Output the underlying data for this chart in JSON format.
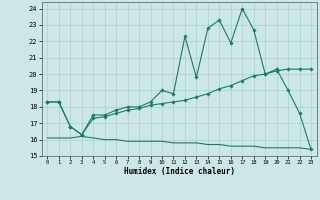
{
  "title": "",
  "xlabel": "Humidex (Indice chaleur)",
  "ylabel": "",
  "xlim": [
    -0.5,
    23.5
  ],
  "ylim": [
    15,
    24.4
  ],
  "yticks": [
    15,
    16,
    17,
    18,
    19,
    20,
    21,
    22,
    23,
    24
  ],
  "xticks": [
    0,
    1,
    2,
    3,
    4,
    5,
    6,
    7,
    8,
    9,
    10,
    11,
    12,
    13,
    14,
    15,
    16,
    17,
    18,
    19,
    20,
    21,
    22,
    23
  ],
  "bg_color": "#cce8e6",
  "grid_color": "#b0d4d2",
  "line_color": "#1a7a6e",
  "line1_x": [
    0,
    1,
    2,
    3,
    4,
    5,
    6,
    7,
    8,
    9,
    10,
    11,
    12,
    13,
    14,
    15,
    16,
    17,
    18,
    19,
    20,
    21,
    22,
    23
  ],
  "line1_y": [
    18.3,
    18.3,
    16.8,
    16.3,
    17.5,
    17.5,
    17.8,
    18.0,
    18.0,
    18.3,
    19.0,
    18.8,
    22.3,
    19.8,
    22.8,
    23.3,
    21.9,
    24.0,
    22.7,
    20.0,
    20.3,
    19.0,
    17.6,
    15.4
  ],
  "line2_x": [
    0,
    1,
    2,
    3,
    4,
    5,
    6,
    7,
    8,
    9,
    10,
    11,
    12,
    13,
    14,
    15,
    16,
    17,
    18,
    19,
    20,
    21,
    22,
    23
  ],
  "line2_y": [
    18.3,
    18.3,
    16.8,
    16.3,
    17.3,
    17.4,
    17.6,
    17.8,
    17.9,
    18.1,
    18.2,
    18.3,
    18.4,
    18.6,
    18.8,
    19.1,
    19.3,
    19.6,
    19.9,
    20.0,
    20.2,
    20.3,
    20.3,
    20.3
  ],
  "line3_x": [
    0,
    1,
    2,
    3,
    4,
    5,
    6,
    7,
    8,
    9,
    10,
    11,
    12,
    13,
    14,
    15,
    16,
    17,
    18,
    19,
    20,
    21,
    22,
    23
  ],
  "line3_y": [
    16.1,
    16.1,
    16.1,
    16.2,
    16.1,
    16.0,
    16.0,
    15.9,
    15.9,
    15.9,
    15.9,
    15.8,
    15.8,
    15.8,
    15.7,
    15.7,
    15.6,
    15.6,
    15.6,
    15.5,
    15.5,
    15.5,
    15.5,
    15.4
  ]
}
